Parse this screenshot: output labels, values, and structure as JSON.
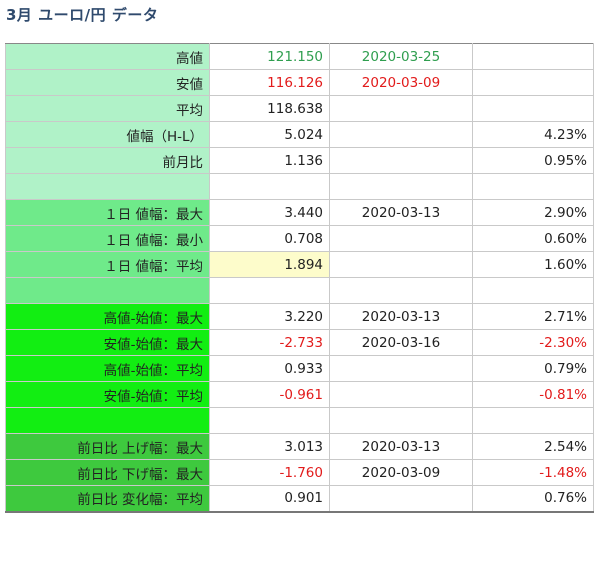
{
  "title": "3月 ユーロ/円 データ",
  "colors": {
    "green_text": "#2f9e4f",
    "red_text": "#e21b1b"
  },
  "rows": [
    {
      "label": "高値",
      "value": "121.150",
      "date": "2020-03-25",
      "pct": "",
      "value_color": "green",
      "date_color": "green",
      "group": "a"
    },
    {
      "label": "安値",
      "value": "116.126",
      "date": "2020-03-09",
      "pct": "",
      "value_color": "red",
      "date_color": "red",
      "group": "a"
    },
    {
      "label": "平均",
      "value": "118.638",
      "date": "",
      "pct": "",
      "group": "a"
    },
    {
      "label": "値幅（H-L）",
      "value": "5.024",
      "date": "",
      "pct": "4.23%",
      "group": "a"
    },
    {
      "label": "前月比",
      "value": "1.136",
      "date": "",
      "pct": "0.95%",
      "group": "a"
    },
    {
      "label": "",
      "value": "",
      "date": "",
      "pct": "",
      "group": "a"
    },
    {
      "label": "１日 値幅：最大",
      "value": "3.440",
      "date": "2020-03-13",
      "pct": "2.90%",
      "group": "b"
    },
    {
      "label": "１日 値幅：最小",
      "value": "0.708",
      "date": "",
      "pct": "0.60%",
      "group": "b"
    },
    {
      "label": "１日 値幅：平均",
      "value": "1.894",
      "date": "",
      "pct": "1.60%",
      "group": "b",
      "highlight": true
    },
    {
      "label": "",
      "value": "",
      "date": "",
      "pct": "",
      "group": "b"
    },
    {
      "label": "高値-始値：最大",
      "value": "3.220",
      "date": "2020-03-13",
      "pct": "2.71%",
      "group": "c"
    },
    {
      "label": "安値-始値：最大",
      "value": "-2.733",
      "date": "2020-03-16",
      "pct": "-2.30%",
      "value_color": "red",
      "pct_color": "red",
      "group": "c"
    },
    {
      "label": "高値-始値：平均",
      "value": "0.933",
      "date": "",
      "pct": "0.79%",
      "group": "c"
    },
    {
      "label": "安値-始値：平均",
      "value": "-0.961",
      "date": "",
      "pct": "-0.81%",
      "value_color": "red",
      "pct_color": "red",
      "group": "c"
    },
    {
      "label": "",
      "value": "",
      "date": "",
      "pct": "",
      "group": "c"
    },
    {
      "label": "前日比 上げ幅：最大",
      "value": "3.013",
      "date": "2020-03-13",
      "pct": "2.54%",
      "group": "d"
    },
    {
      "label": "前日比 下げ幅：最大",
      "value": "-1.760",
      "date": "2020-03-09",
      "pct": "-1.48%",
      "value_color": "red",
      "pct_color": "red",
      "group": "d"
    },
    {
      "label": "前日比 変化幅：平均",
      "value": "0.901",
      "date": "",
      "pct": "0.76%",
      "group": "d"
    }
  ]
}
